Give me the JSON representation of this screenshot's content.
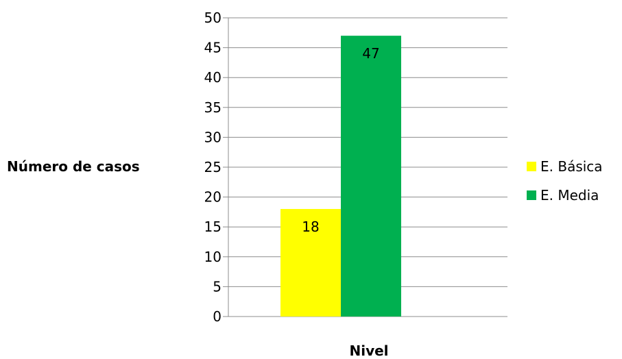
{
  "chart_data": {
    "type": "bar",
    "categories": [
      ""
    ],
    "series": [
      {
        "name": "E. Básica",
        "values": [
          18
        ],
        "color": "#ffff00"
      },
      {
        "name": "E. Media",
        "values": [
          47
        ],
        "color": "#00b050"
      }
    ],
    "title": "",
    "xlabel": "Nivel",
    "ylabel": "Número de casos",
    "ylim": [
      0,
      50
    ],
    "yticks": [
      0,
      5,
      10,
      15,
      20,
      25,
      30,
      35,
      40,
      45,
      50
    ],
    "grid": true,
    "legend_position": "right",
    "data_labels": true
  }
}
